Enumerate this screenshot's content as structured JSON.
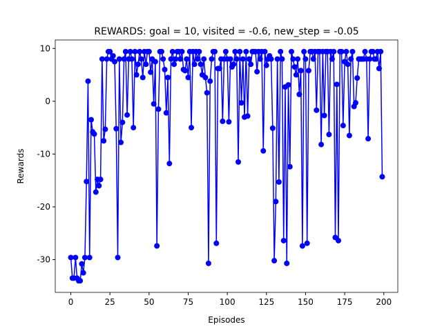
{
  "chart_data": {
    "type": "line",
    "title": "REWARDS: goal = 10, visited = -0.6, new_step = -0.05",
    "x_label": "Episodes",
    "y_label": "Rewards",
    "x": [
      0,
      1,
      2,
      3,
      4,
      5,
      6,
      7,
      8,
      9,
      10,
      11,
      12,
      13,
      14,
      15,
      16,
      17,
      18,
      19,
      20,
      21,
      22,
      23,
      24,
      25,
      26,
      27,
      28,
      29,
      30,
      31,
      32,
      33,
      34,
      35,
      36,
      37,
      38,
      39,
      40,
      41,
      42,
      43,
      44,
      45,
      46,
      47,
      48,
      49,
      50,
      51,
      52,
      53,
      54,
      55,
      56,
      57,
      58,
      59,
      60,
      61,
      62,
      63,
      64,
      65,
      66,
      67,
      68,
      69,
      70,
      71,
      72,
      73,
      74,
      75,
      76,
      77,
      78,
      79,
      80,
      81,
      82,
      83,
      84,
      85,
      86,
      87,
      88,
      89,
      90,
      91,
      92,
      93,
      94,
      95,
      96,
      97,
      98,
      99,
      100,
      101,
      102,
      103,
      104,
      105,
      106,
      107,
      108,
      109,
      110,
      111,
      112,
      113,
      114,
      115,
      116,
      117,
      118,
      119,
      120,
      121,
      122,
      123,
      124,
      125,
      126,
      127,
      128,
      129,
      130,
      131,
      132,
      133,
      134,
      135,
      136,
      137,
      138,
      139,
      140,
      141,
      142,
      143,
      144,
      145,
      146,
      147,
      148,
      149,
      150,
      151,
      152,
      153,
      154,
      155,
      156,
      157,
      158,
      159,
      160,
      161,
      162,
      163,
      164,
      165,
      166,
      167,
      168,
      169,
      170,
      171,
      172,
      173,
      174,
      175,
      176,
      177,
      178,
      179,
      180,
      181,
      182,
      183,
      184,
      185,
      186,
      187,
      188,
      189,
      190,
      191,
      192,
      193,
      194,
      195,
      196,
      197,
      198,
      199
    ],
    "series": [
      {
        "color": "#0000ff",
        "values": [
          -29.6,
          -33.5,
          -33.5,
          -29.6,
          -33.5,
          -34,
          -34,
          -30.8,
          -32.5,
          -29.6,
          -15.2,
          3.8,
          -29.6,
          -3.5,
          -5.8,
          -6.2,
          -17.2,
          -14.8,
          -16,
          -14.8,
          8,
          -7.5,
          -5.3,
          8,
          9.4,
          9.4,
          8,
          8.6,
          7.5,
          -5.2,
          -29.6,
          8,
          -7.8,
          -4,
          8,
          9.4,
          -2.6,
          8,
          9.4,
          8,
          -5,
          9.4,
          5,
          7,
          9.4,
          8,
          4.5,
          9.4,
          7,
          9.4,
          9.4,
          5.5,
          8,
          -0.5,
          7.5,
          -27.4,
          -1.5,
          9.4,
          9.4,
          8,
          6,
          -2.2,
          4.5,
          -11.8,
          8,
          9.4,
          7,
          8,
          9.4,
          9.4,
          8,
          9.4,
          6,
          5.8,
          8,
          4.5,
          9.4,
          -5,
          9.4,
          7,
          9.4,
          8,
          9.4,
          7,
          5,
          8,
          4.5,
          1.6,
          -30.7,
          3.8,
          8,
          9.4,
          9.4,
          -26.9,
          6.2,
          6.2,
          8,
          -3.8,
          8,
          9.4,
          8,
          -3.9,
          8,
          6.5,
          7,
          9.4,
          8,
          -11.5,
          9.4,
          -0.3,
          8,
          -3,
          9.4,
          -2.8,
          8,
          7,
          9.4,
          9.4,
          9.4,
          5.6,
          9.4,
          8,
          9.4,
          -9.4,
          9.4,
          6.8,
          8,
          8.6,
          8,
          -5.1,
          -30.2,
          -19,
          8,
          -15.3,
          9.4,
          8,
          -26.4,
          2.7,
          -30.7,
          3.1,
          -12.4,
          9.4,
          8,
          6.5,
          5,
          8,
          1.3,
          5.8,
          -27.4,
          9.4,
          8,
          -26.9,
          5.8,
          9.4,
          9.4,
          8,
          9.4,
          -1.7,
          9.4,
          9.4,
          -8.2,
          9.4,
          -2.7,
          9.4,
          9.4,
          -6.3,
          9.4,
          8,
          9.4,
          -25.8,
          3.2,
          -26.4,
          9.4,
          9.4,
          -4.6,
          7.5,
          9.4,
          7,
          -6.5,
          8,
          9.4,
          -1,
          -0.3,
          4.4,
          8,
          8,
          8,
          8,
          9.4,
          8,
          -7.1,
          8,
          9.4,
          9.4,
          8,
          8,
          9.4,
          6.2,
          9.4,
          -14.3
        ]
      }
    ],
    "xlim": [
      -9.95,
      208.95
    ],
    "xticks": [
      0,
      25,
      50,
      75,
      100,
      125,
      150,
      175,
      200
    ],
    "ylim": [
      -36.2,
      11.6
    ],
    "yticks": [
      -30,
      -20,
      -10,
      0,
      10
    ],
    "grid": false,
    "marker": "o"
  }
}
